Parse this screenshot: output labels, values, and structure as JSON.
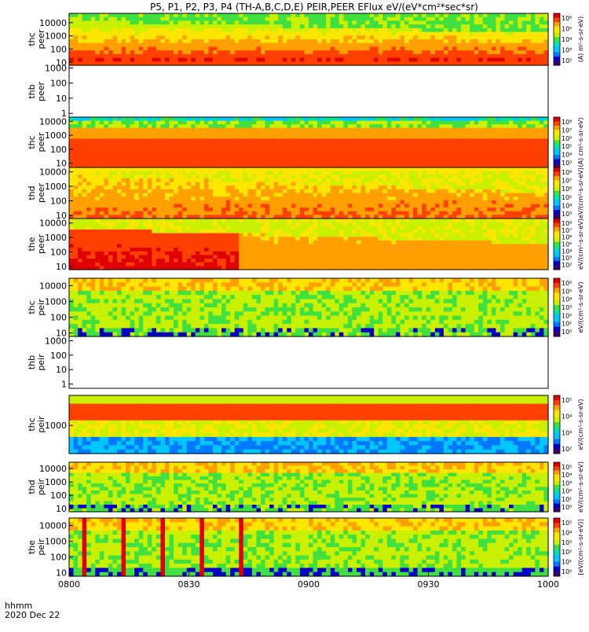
{
  "title": "P5, P1, P2, P3, P4 (TH-A,B,C,D,E) PEIR,PEER EFlux eV/(eV*cm²*sec*sr)",
  "footer": {
    "label": "hhmm",
    "date": "2020 Dec 22"
  },
  "chart_data": {
    "type": "heatmap",
    "x_tick_labels": [
      "0800",
      "0830",
      "0900",
      "0930",
      "1000"
    ],
    "x_range": [
      "08:00",
      "10:00"
    ],
    "colormap": [
      "#3a0070",
      "#0000c8",
      "#0078ff",
      "#00c8ff",
      "#00e6a0",
      "#40e040",
      "#c8f000",
      "#ffe600",
      "#ffa000",
      "#ff4000",
      "#e00000"
    ],
    "panels": [
      {
        "id": "thc-peer",
        "label_top": "thc",
        "label_bottom": "peer",
        "has_data": true,
        "y_tick_labels": [
          "10000",
          "1000",
          "100",
          "10"
        ],
        "y_log_range": [
          6,
          50000
        ],
        "profile": "peer_dense",
        "bar_title": "(A) m²-s-sr-eV)",
        "cbar_ticks": [
          "10⁶",
          "10⁵",
          "10⁴",
          "10³",
          "10²"
        ]
      },
      {
        "id": "thb-peer",
        "label_top": "thb",
        "label_bottom": "peer",
        "has_data": false,
        "y_tick_labels": [
          "1000",
          "100",
          "10",
          "1"
        ],
        "y_log_range": [
          0.5,
          1500
        ],
        "profile": "none",
        "bar_title": "",
        "cbar_ticks": []
      },
      {
        "id": "thc-peer-2",
        "label_top": "thc",
        "label_bottom": "peer",
        "has_data": true,
        "y_tick_labels": [
          "10000",
          "1000",
          "100",
          "10"
        ],
        "y_log_range": [
          5,
          20000
        ],
        "profile": "flat_red",
        "bar_title": "(A) cm²-s-sr-eV)",
        "cbar_ticks": [
          "10⁸",
          "10⁷",
          "10⁶",
          "10⁵",
          "10⁴",
          "10³"
        ]
      },
      {
        "id": "thd-peer",
        "label_top": "thd",
        "label_bottom": "peer",
        "has_data": true,
        "y_tick_labels": [
          "10000",
          "1000",
          "100",
          "10"
        ],
        "y_log_range": [
          6,
          20000
        ],
        "profile": "peer_warm",
        "bar_title": "eV/(cm²-s-sr-eV)",
        "cbar_ticks": [
          "10⁸",
          "10⁷",
          "10⁶",
          "10⁵",
          "10⁴",
          "10³"
        ]
      },
      {
        "id": "the-peer",
        "label_top": "the",
        "label_bottom": "peer",
        "has_data": true,
        "y_tick_labels": [
          "10000",
          "1000",
          "100",
          "10"
        ],
        "y_log_range": [
          6,
          20000
        ],
        "profile": "peer_hot",
        "bar_title": "eV/(cm²-s-sr-eV)",
        "cbar_ticks": [
          "10⁸",
          "10⁷",
          "10⁶",
          "10⁵",
          "10⁴",
          "10³",
          "10²"
        ]
      },
      {
        "id": "thc-peir",
        "label_top": "thc",
        "label_bottom": "peir",
        "has_data": true,
        "y_tick_labels": [
          "10000",
          "1000",
          "100",
          "10"
        ],
        "y_log_range": [
          6,
          30000
        ],
        "profile": "peir",
        "bar_title": "eV/(cm²-s-sr-eV)",
        "cbar_ticks": [
          "10⁶",
          "10⁵",
          "10⁴",
          "10³",
          "10²",
          "10¹",
          "10⁰"
        ]
      },
      {
        "id": "thb-peir",
        "label_top": "thb",
        "label_bottom": "peir",
        "has_data": false,
        "y_tick_labels": [
          "1000",
          "100",
          "10",
          "1"
        ],
        "y_log_range": [
          0.5,
          2000
        ],
        "profile": "none",
        "bar_title": "",
        "cbar_ticks": []
      },
      {
        "id": "thc-peir-2",
        "label_top": "thc",
        "label_bottom": "peir",
        "has_data": true,
        "y_tick_labels": [
          "1000"
        ],
        "y_log_range": [
          60,
          20000
        ],
        "profile": "peir_band",
        "bar_title": "eV/(cm²-s-sr-eV)",
        "cbar_ticks": [
          "10⁵",
          "10⁴",
          "10³",
          "10²"
        ]
      },
      {
        "id": "thd-peir",
        "label_top": "thd",
        "label_bottom": "peir",
        "has_data": true,
        "y_tick_labels": [
          "10000",
          "1000",
          "100",
          "10"
        ],
        "y_log_range": [
          6,
          30000
        ],
        "profile": "peir",
        "bar_title": "eV/(cm²-s-sr-eV)",
        "cbar_ticks": [
          "10⁵",
          "10⁴",
          "10³",
          "10²",
          "10¹",
          "10⁰"
        ]
      },
      {
        "id": "the-peir",
        "label_top": "the",
        "label_bottom": "peir",
        "has_data": true,
        "y_tick_labels": [
          "10000",
          "1000",
          "100",
          "10"
        ],
        "y_log_range": [
          6,
          30000
        ],
        "profile": "peir_spikes",
        "bar_title": "[eV/(cm²-s-sr-eV)]",
        "cbar_ticks": [
          "10⁵",
          "10⁴",
          "10³",
          "10²",
          "10¹",
          "10⁰"
        ]
      }
    ]
  }
}
